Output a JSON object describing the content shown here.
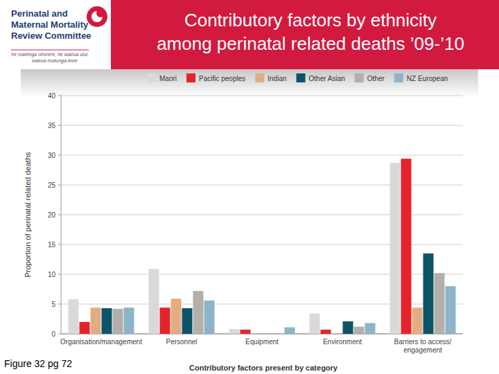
{
  "logo": {
    "name_lines": [
      "Perinatal and",
      "Maternal Mortality",
      "Review Committee"
    ],
    "motto_lines": [
      "he matenga ohorere, he wairua ului,",
      "wairua mutunga-kore"
    ]
  },
  "chart_data": {
    "type": "bar",
    "title": "Contributory factors by ethnicity among perinatal related deaths ’09-’10",
    "x_label": "Contributory factors present by category",
    "y_label": "Proportion of perinatal related deaths",
    "categories": [
      "Organisation/management",
      "Personnel",
      "Equipment",
      "Environment",
      "Barriers to access/ engagement"
    ],
    "series": [
      {
        "name": "Maori",
        "color": "#d9d9d9",
        "values": [
          5.8,
          10.9,
          0.8,
          3.4,
          28.7
        ]
      },
      {
        "name": "Pacific peoples",
        "color": "#e3242b",
        "values": [
          2.0,
          4.4,
          0.7,
          0.7,
          29.4
        ]
      },
      {
        "name": "Indian",
        "color": "#e2ad83",
        "values": [
          4.4,
          5.9,
          0,
          0,
          4.4
        ]
      },
      {
        "name": "Other Asian",
        "color": "#0e5468",
        "values": [
          4.3,
          4.3,
          0,
          2.1,
          13.5
        ]
      },
      {
        "name": "Other",
        "color": "#b2b0a8",
        "values": [
          4.2,
          7.2,
          0,
          1.2,
          10.2
        ]
      },
      {
        "name": "NZ European",
        "color": "#8db4c8",
        "values": [
          4.4,
          5.6,
          1.1,
          1.8,
          8.0
        ]
      }
    ],
    "ylim": [
      0,
      40
    ],
    "yticks": [
      0,
      5,
      10,
      15,
      20,
      25,
      30,
      35,
      40
    ],
    "grid": true,
    "legend": "top"
  },
  "footnote": "Figure 32 pg 72"
}
